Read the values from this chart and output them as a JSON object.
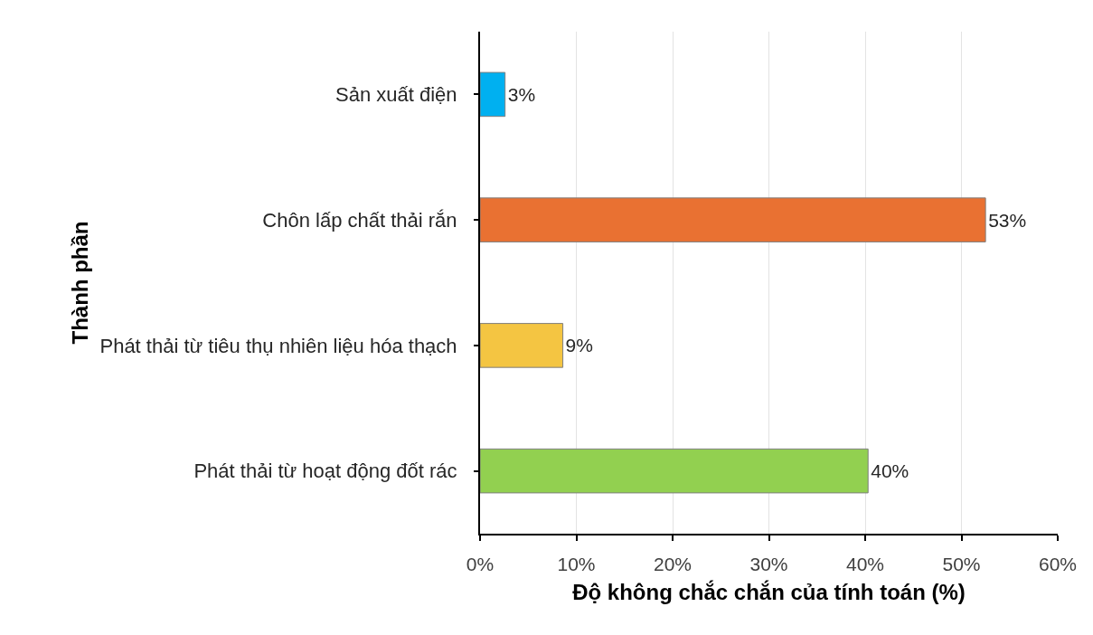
{
  "chart_data": {
    "type": "bar",
    "orientation": "horizontal",
    "xlabel": "Độ không chắc chắn của tính toán (%)",
    "ylabel": "Thành phần",
    "categories": [
      "Sản xuất điện",
      "Chôn lấp chất thải rắn",
      "Phát thải từ tiêu thụ nhiên liệu hóa thạch",
      "Phát thải từ hoạt động đốt rác"
    ],
    "values": [
      2.6,
      52.5,
      8.6,
      40.3
    ],
    "colors": [
      "#00b0f0",
      "#e97132",
      "#f4c542",
      "#92d050"
    ],
    "value_labels": [
      "3%",
      "53%",
      "9%",
      "40%"
    ],
    "xlim": [
      0,
      60
    ],
    "xticks": [
      {
        "value": 0,
        "label": "0%"
      },
      {
        "value": 10,
        "label": "10%"
      },
      {
        "value": 20,
        "label": "20%"
      },
      {
        "value": 30,
        "label": "30%"
      },
      {
        "value": 40,
        "label": "40%"
      },
      {
        "value": 50,
        "label": "50%"
      },
      {
        "value": 60,
        "label": "60%"
      }
    ],
    "grid": "x"
  }
}
